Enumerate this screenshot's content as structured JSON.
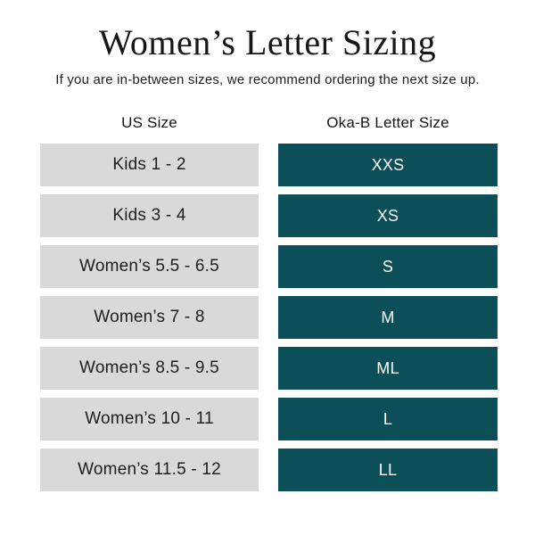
{
  "page": {
    "title": "Women’s Letter Sizing",
    "subtitle": "If you are in-between sizes, we recommend ordering the next size up."
  },
  "table": {
    "columns": [
      "US Size",
      "Oka-B Letter Size"
    ],
    "rows": [
      {
        "us_size": "Kids 1 - 2",
        "letter_size": "XXS"
      },
      {
        "us_size": "Kids 3 - 4",
        "letter_size": "XS"
      },
      {
        "us_size": "Women’s 5.5 - 6.5",
        "letter_size": "S"
      },
      {
        "us_size": "Women’s 7 - 8",
        "letter_size": "M"
      },
      {
        "us_size": "Women’s 8.5 - 9.5",
        "letter_size": "ML"
      },
      {
        "us_size": "Women’s 10 - 11",
        "letter_size": "L"
      },
      {
        "us_size": "Women’s 11.5 - 12",
        "letter_size": "LL"
      }
    ],
    "colors": {
      "letter_cell_bg": "#0d4f58",
      "letter_cell_text": "#ffffff",
      "us_cell_bg": "#d9d9d9",
      "us_cell_text": "#1e1e1e"
    }
  },
  "chart_data": {
    "type": "table",
    "title": "Women’s Letter Sizing",
    "subtitle": "If you are in-between sizes, we recommend ordering the next size up.",
    "columns": [
      "US Size",
      "Oka-B Letter Size"
    ],
    "rows": [
      [
        "Kids 1 - 2",
        "XXS"
      ],
      [
        "Kids 3 - 4",
        "XS"
      ],
      [
        "Women’s 5.5 - 6.5",
        "S"
      ],
      [
        "Women’s 7 - 8",
        "M"
      ],
      [
        "Women’s 8.5 - 9.5",
        "ML"
      ],
      [
        "Women’s 10 - 11",
        "L"
      ],
      [
        "Women’s 11.5 - 12",
        "LL"
      ]
    ]
  }
}
